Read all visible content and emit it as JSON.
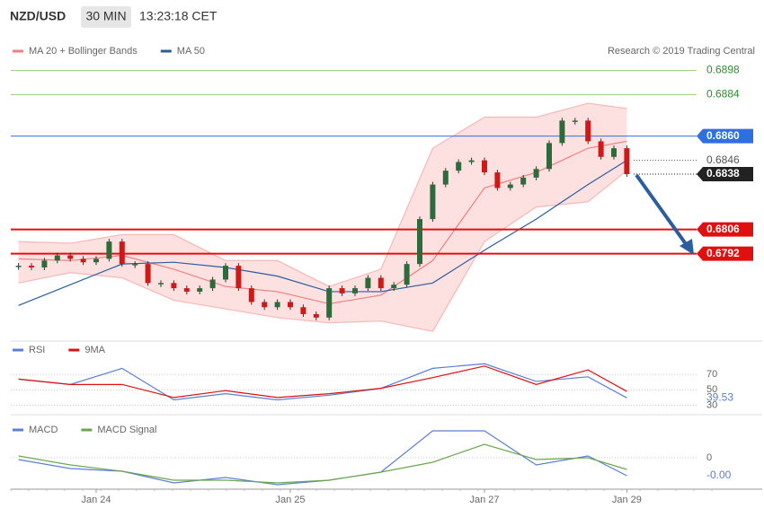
{
  "header": {
    "symbol": "NZD/USD",
    "interval": "30 MIN",
    "time": "13:23:18 CET"
  },
  "chart_data": [
    {
      "type": "candlestick",
      "legend": [
        {
          "name": "MA 20 + Bollinger Bands",
          "color": "#f08080"
        },
        {
          "name": "MA 50",
          "color": "#2c5d9e"
        }
      ],
      "credit": "Research © 2019 Trading Central",
      "categories": [
        null,
        null,
        null,
        null,
        null,
        null,
        "Jan 24",
        null,
        null,
        null,
        null,
        null,
        null,
        null,
        null,
        null,
        null,
        null,
        null,
        null,
        null,
        "Jan 25",
        null,
        null,
        null,
        null,
        null,
        null,
        null,
        null,
        null,
        null,
        null,
        null,
        null,
        null,
        "Jan 27",
        null,
        null,
        null,
        null,
        null,
        null,
        null,
        null,
        null,
        null,
        "Jan 29"
      ],
      "close": [
        0.6785,
        0.6784,
        0.6788,
        0.6791,
        0.6789,
        0.6787,
        0.6789,
        0.6799,
        0.6786,
        0.6786,
        0.6775,
        0.6775,
        0.6772,
        0.677,
        0.6772,
        0.6777,
        0.6785,
        0.6772,
        0.6764,
        0.6761,
        0.6764,
        0.6761,
        0.6757,
        0.6755,
        0.6772,
        0.6769,
        0.6772,
        0.6778,
        0.6772,
        0.6774,
        0.6786,
        0.6812,
        0.6832,
        0.684,
        0.6845,
        0.6846,
        0.6839,
        0.683,
        0.6832,
        0.6836,
        0.6841,
        0.6856,
        0.6869,
        0.6869,
        0.6857,
        0.6848,
        0.6853,
        0.6838
      ],
      "up_color": "#2e6b3a",
      "down_color": "#d01818",
      "x": [
        0,
        4,
        8,
        12,
        16,
        20,
        24,
        28,
        32,
        36,
        40,
        44,
        47
      ],
      "series": [
        {
          "name": "upper",
          "color": "#f7b8b8",
          "values": [
            0.6799,
            0.6798,
            0.6803,
            0.6803,
            0.6788,
            0.6788,
            0.6773,
            0.6783,
            0.6853,
            0.6871,
            0.6871,
            0.6879,
            0.6876
          ]
        },
        {
          "name": "lower",
          "color": "#f7b8b8",
          "values": [
            0.6775,
            0.6781,
            0.6778,
            0.6765,
            0.676,
            0.6755,
            0.6752,
            0.6753,
            0.6747,
            0.6799,
            0.6819,
            0.6822,
            0.684
          ]
        },
        {
          "name": "MA 20",
          "color": "#f08080",
          "values": [
            0.6789,
            0.6788,
            0.6791,
            0.6783,
            0.6773,
            0.677,
            0.6763,
            0.6768,
            0.6788,
            0.683,
            0.6839,
            0.6853,
            0.6857
          ]
        },
        {
          "name": "MA 50",
          "color": "#2c5d9e",
          "values": [
            0.6762,
            0.6774,
            0.6786,
            0.6787,
            0.6784,
            0.6779,
            0.677,
            0.677,
            0.6775,
            0.6794,
            0.6812,
            0.6832,
            0.6846
          ]
        }
      ],
      "band_color": "#fde0e0",
      "levels": [
        {
          "value": 0.6898,
          "color": "#9ed67f",
          "box": false
        },
        {
          "value": 0.6884,
          "color": "#9ed67f",
          "box": false
        },
        {
          "value": 0.686,
          "label": "0.6860",
          "color": "#2f6fe0",
          "box": true
        },
        {
          "value": 0.6846,
          "color": "#555555",
          "box": false,
          "dotted": true
        },
        {
          "value": 0.6838,
          "color": "#222222",
          "box": true,
          "dotted": true
        },
        {
          "value": 0.6806,
          "color": "#e01010",
          "box": true
        },
        {
          "value": 0.6792,
          "color": "#e01010",
          "box": true
        }
      ],
      "ylim": [
        0.6744,
        0.6918
      ]
    },
    {
      "type": "line",
      "x": [
        0,
        4,
        8,
        12,
        16,
        20,
        24,
        28,
        32,
        36,
        40,
        44,
        47
      ],
      "series": [
        {
          "name": "RSI",
          "color": "#5b7fd6",
          "values": [
            64,
            57,
            78,
            37,
            45,
            37,
            43,
            52,
            78,
            84,
            61,
            67,
            39.53
          ]
        },
        {
          "name": "9MA",
          "color": "#e01010",
          "values": [
            64,
            57,
            57,
            40,
            49,
            40,
            45,
            52,
            66,
            81,
            57,
            76,
            48
          ]
        }
      ],
      "ylim": [
        20,
        96
      ],
      "yticks": [
        30,
        50,
        70
      ]
    },
    {
      "type": "line",
      "x": [
        0,
        4,
        8,
        12,
        16,
        20,
        24,
        28,
        32,
        36,
        40,
        44,
        47
      ],
      "series": [
        {
          "name": "MACD",
          "color": "#5b7fd6",
          "values": [
            -4e-05,
            -0.00024,
            -0.0003,
            -0.00056,
            -0.00044,
            -0.0006,
            -0.0005,
            -0.00032,
            0.0006,
            0.0006,
            -0.00016,
            4e-05,
            -0.0004
          ],
          "value_labels": [
            null,
            null,
            null,
            null,
            null,
            null,
            null,
            null,
            null,
            null,
            null,
            null,
            "-0.00"
          ]
        },
        {
          "name": "MACD Signal",
          "color": "#6aa84f",
          "values": [
            4e-05,
            -0.00016,
            -0.0003,
            -0.0005,
            -0.0005,
            -0.00056,
            -0.0005,
            -0.00032,
            -0.0001,
            0.0003,
            -4e-05,
            0,
            -0.00026
          ]
        }
      ],
      "ylim": [
        -0.0007,
        0.0009
      ],
      "yticks": [
        0
      ]
    }
  ]
}
